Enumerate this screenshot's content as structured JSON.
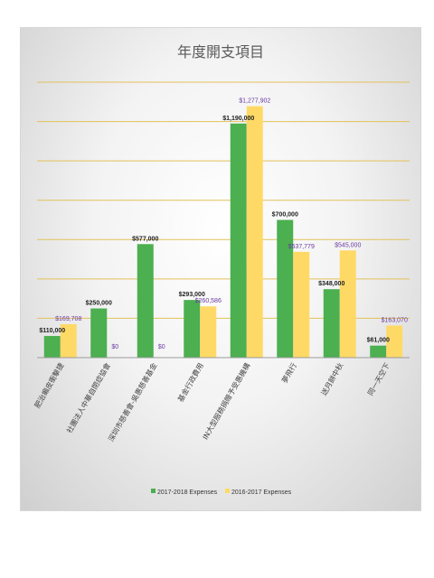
{
  "colors": {
    "series_2017": "#4caf50",
    "series_2016": "#ffd966",
    "gridline": "#e2c15a",
    "label_2016": "#6a3aa0",
    "label_2017": "#222222"
  },
  "chart_data": {
    "type": "bar",
    "title": "年度開支項目",
    "categories": [
      "肥治癩皮衝擊捷",
      "社團法人中華自閉症協會",
      "深圳市慈善會-吳惠慈善基金",
      "基金行政費用",
      "IN大型服務捐贈予受惠機構",
      "夢飛行",
      "送月餅中秋",
      "同一天空下"
    ],
    "series": [
      {
        "name": "2017-2018 Expenses",
        "values": [
          110000,
          250000,
          577000,
          293000,
          1190000,
          700000,
          348000,
          61000
        ],
        "labels": [
          "$110,000",
          "$250,000",
          "$577,000",
          "$293,000",
          "$1,190,000",
          "$700,000",
          "$348,000",
          "$61,000"
        ]
      },
      {
        "name": "2016-2017 Expenses",
        "values": [
          169708,
          0,
          0,
          260586,
          1277902,
          537779,
          545000,
          163070
        ],
        "labels": [
          "$169,708",
          "$0",
          "$0",
          "$260,586",
          "$1,277,902",
          "$537,779",
          "$545,000",
          "$163,070"
        ]
      }
    ],
    "ylim": [
      0,
      1400000
    ],
    "y_gridlines": true,
    "legend_position": "bottom",
    "xlabel": "",
    "ylabel": ""
  }
}
